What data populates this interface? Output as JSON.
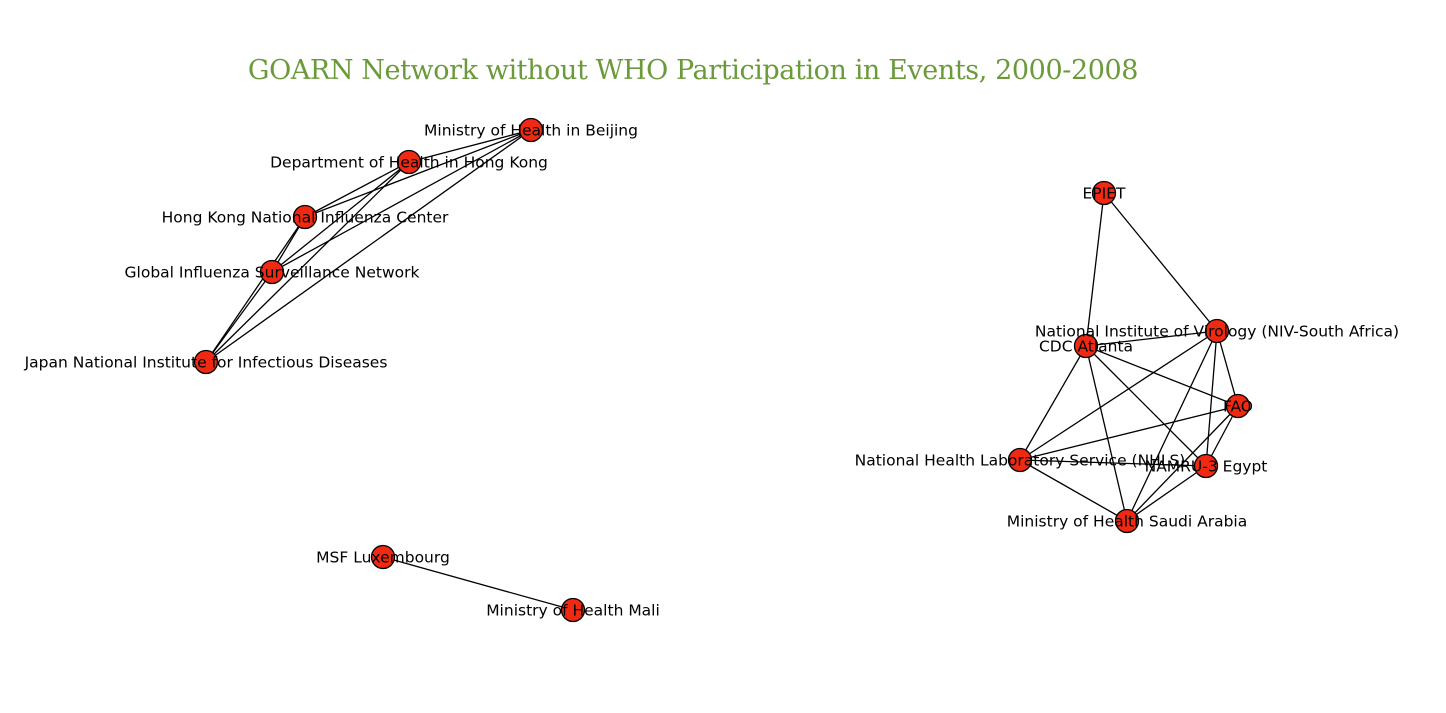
{
  "title": "GOARN Network without WHO Participation in Events, 2000-2008",
  "colors": {
    "title": "#6b9a3a",
    "node_fill": "#f02a12",
    "node_stroke": "#000000",
    "edge": "#000000"
  },
  "nodes": [
    {
      "id": "beijing",
      "label": "Ministry of Health in Beijing"
    },
    {
      "id": "hk_doh",
      "label": "Department of Health in Hong Kong"
    },
    {
      "id": "hk_nic",
      "label": "Hong Kong National Influenza Center"
    },
    {
      "id": "gisn",
      "label": "Global Influenza Surveillance Network"
    },
    {
      "id": "japan_niid",
      "label": "Japan National Institute for Infectious Diseases"
    },
    {
      "id": "msf_lux",
      "label": "MSF Luxembourg"
    },
    {
      "id": "moh_mali",
      "label": "Ministry of Health Mali"
    },
    {
      "id": "epiet",
      "label": "EPIET"
    },
    {
      "id": "niv_sa",
      "label": "National Institute of Virology (NIV-South Africa)"
    },
    {
      "id": "cdc",
      "label": "CDC Atlanta"
    },
    {
      "id": "fao",
      "label": "FAO"
    },
    {
      "id": "nhls",
      "label": "National Health Laboratory Service (NHLS)"
    },
    {
      "id": "namru3",
      "label": "NAMRU-3 Egypt"
    },
    {
      "id": "moh_saudi",
      "label": "Ministry of Health Saudi Arabia"
    }
  ],
  "edges": [
    [
      "beijing",
      "hk_doh"
    ],
    [
      "beijing",
      "hk_nic"
    ],
    [
      "beijing",
      "gisn"
    ],
    [
      "beijing",
      "japan_niid"
    ],
    [
      "hk_doh",
      "hk_nic"
    ],
    [
      "hk_doh",
      "gisn"
    ],
    [
      "hk_doh",
      "japan_niid"
    ],
    [
      "hk_nic",
      "gisn"
    ],
    [
      "hk_nic",
      "japan_niid"
    ],
    [
      "gisn",
      "japan_niid"
    ],
    [
      "msf_lux",
      "moh_mali"
    ],
    [
      "epiet",
      "cdc"
    ],
    [
      "epiet",
      "niv_sa"
    ],
    [
      "cdc",
      "niv_sa"
    ],
    [
      "cdc",
      "fao"
    ],
    [
      "cdc",
      "nhls"
    ],
    [
      "cdc",
      "namru3"
    ],
    [
      "cdc",
      "moh_saudi"
    ],
    [
      "niv_sa",
      "fao"
    ],
    [
      "niv_sa",
      "nhls"
    ],
    [
      "niv_sa",
      "namru3"
    ],
    [
      "niv_sa",
      "moh_saudi"
    ],
    [
      "fao",
      "nhls"
    ],
    [
      "fao",
      "namru3"
    ],
    [
      "fao",
      "moh_saudi"
    ],
    [
      "nhls",
      "namru3"
    ],
    [
      "nhls",
      "moh_saudi"
    ],
    [
      "namru3",
      "moh_saudi"
    ]
  ]
}
